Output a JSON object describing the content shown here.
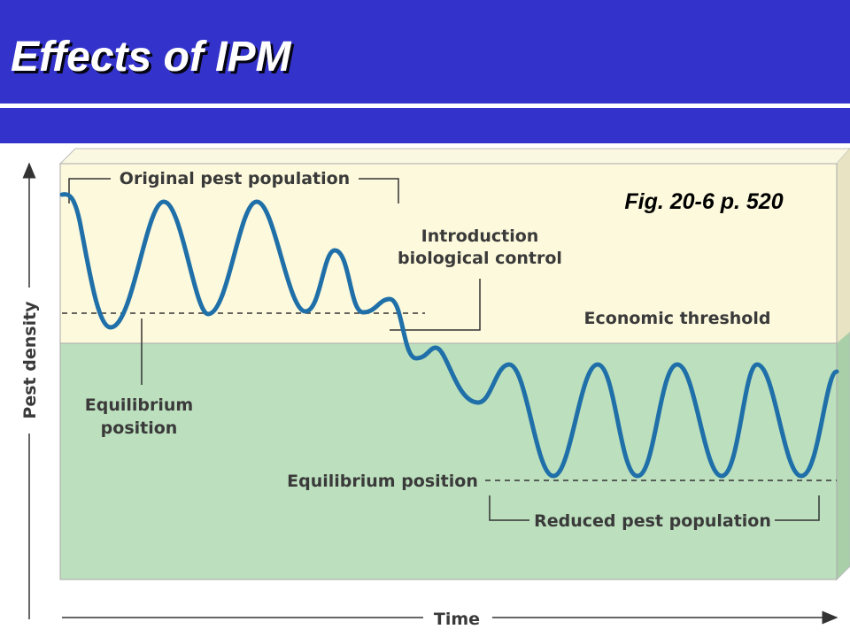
{
  "header": {
    "title": "Effects of IPM"
  },
  "figure_ref": "Fig. 20-6 p. 520",
  "diagram": {
    "y_axis_label": "Pest density",
    "x_axis_label": "Time",
    "labels": {
      "original": "Original pest population",
      "introduction": [
        "Introduction",
        "biological control"
      ],
      "threshold": "Economic threshold",
      "equilibrium_upper": [
        "Equilibrium",
        "position"
      ],
      "equilibrium_lower": "Equilibrium position",
      "reduced": "Reduced pest population"
    }
  }
}
